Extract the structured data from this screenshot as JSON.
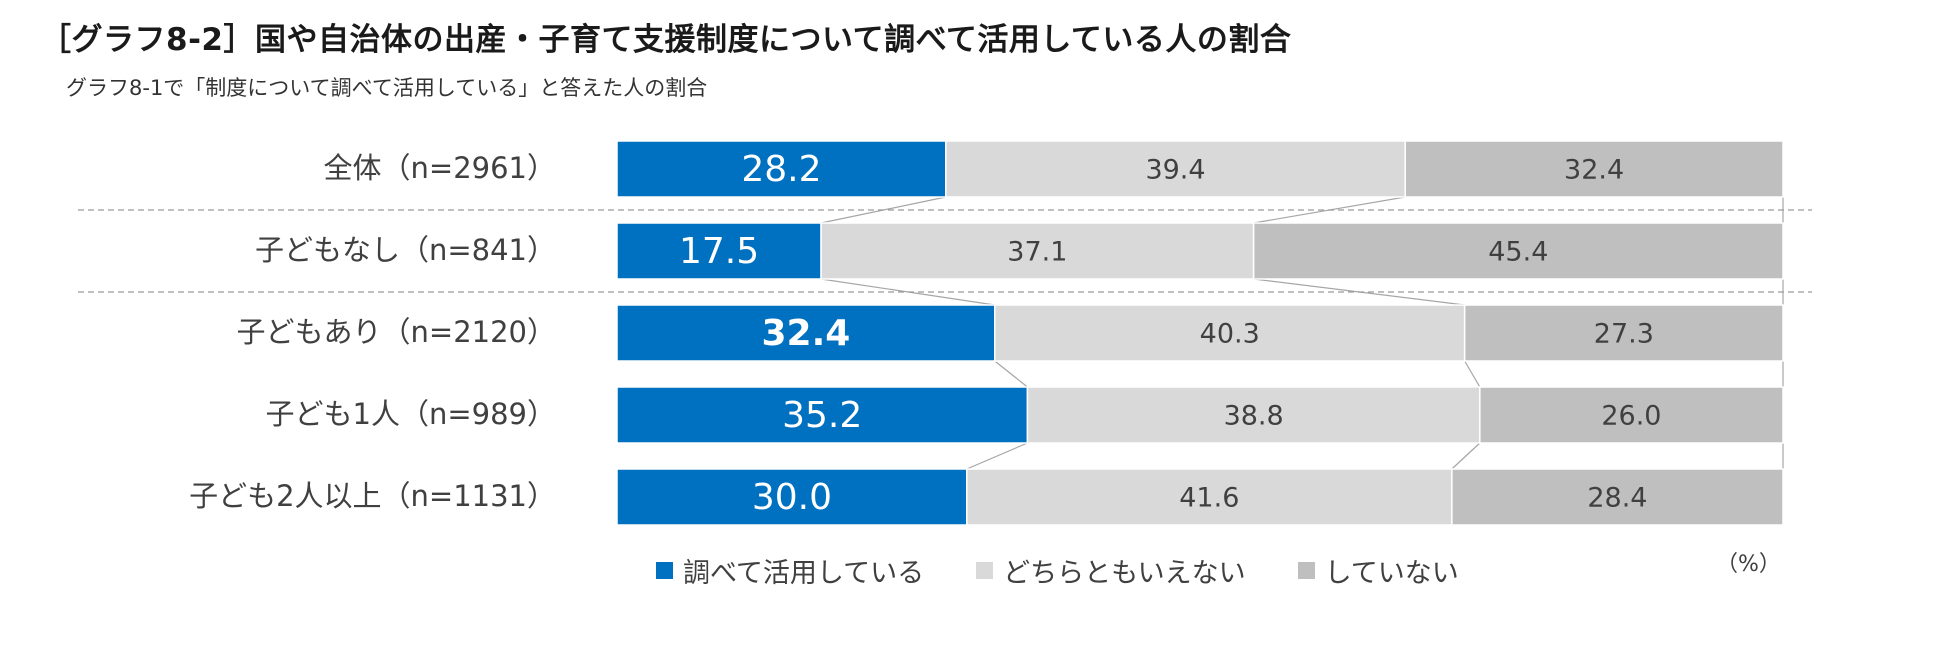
{
  "title": "［グラフ8-2］国や自治体の出産・子育て支援制度について調べて活用している人の割合",
  "subtitle": "グラフ8-1で「制度について調べて活用している」と答えた人の割合",
  "unit_label": "（%）",
  "colors": {
    "series1": "#0070C0",
    "series2": "#D9D9D9",
    "series3": "#BFBFBF"
  },
  "legend": [
    {
      "label": "調べて活用している",
      "color": "#0070C0"
    },
    {
      "label": "どちらともいえない",
      "color": "#D9D9D9"
    },
    {
      "label": "していない",
      "color": "#BFBFBF"
    }
  ],
  "chart_data": {
    "type": "bar",
    "orientation": "horizontal",
    "stacked": "percent",
    "categories": [
      "全体（n=2961）",
      "子どもなし（n=841）",
      "子どもあり（n=2120）",
      "子ども1人（n=989）",
      "子ども2人以上（n=1131）"
    ],
    "series": [
      {
        "name": "調べて活用している",
        "values": [
          28.2,
          17.5,
          32.4,
          35.2,
          30.0
        ],
        "labels": [
          "28.2",
          "17.5",
          "32.4",
          "35.2",
          "30.0"
        ]
      },
      {
        "name": "どちらともいえない",
        "values": [
          39.4,
          37.1,
          40.3,
          38.8,
          41.6
        ],
        "labels": [
          "39.4",
          "37.1",
          "40.3",
          "38.8",
          "41.6"
        ]
      },
      {
        "name": "していない",
        "values": [
          32.4,
          45.4,
          27.3,
          26.0,
          28.4
        ],
        "labels": [
          "32.4",
          "45.4",
          "27.3",
          "26.0",
          "28.4"
        ]
      }
    ],
    "highlight": {
      "series": 0,
      "category": 2
    },
    "xlim": [
      0,
      100
    ],
    "series_lines": true,
    "group_dividers_after": [
      0,
      1
    ],
    "legend_position": "bottom"
  }
}
